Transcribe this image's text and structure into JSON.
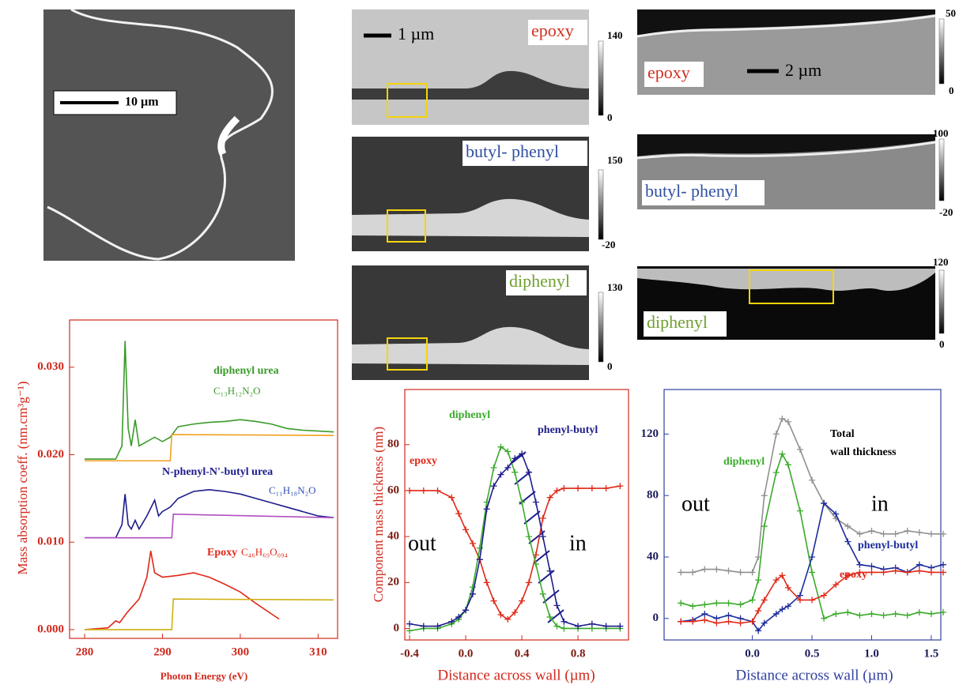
{
  "images": [
    {
      "scale_bar": "10 µm"
    },
    {
      "label": "epoxy",
      "scale_bar": "1 µm",
      "colorbar": [
        140,
        0
      ]
    },
    {
      "label": "butyl- phenyl",
      "colorbar": [
        150,
        -20
      ]
    },
    {
      "label": "diphenyl",
      "colorbar": [
        130,
        0
      ]
    },
    {
      "label": "epoxy",
      "scale_bar": "2 µm",
      "colorbar": [
        50,
        0
      ]
    },
    {
      "label": "butyl- phenyl",
      "colorbar": [
        100,
        -20
      ]
    },
    {
      "label": "diphenyl",
      "colorbar": [
        120,
        0
      ]
    }
  ],
  "chart_data": [
    {
      "type": "line",
      "x_label": "Photon Energy (eV)",
      "y_label": "Mass absorption coeff. (nm.cm³g⁻¹)",
      "axis_color": "#d0281c",
      "xlim": [
        278.07,
        312.5
      ],
      "ylim": [
        -0.001,
        0.0354
      ],
      "xticks": [
        280,
        290,
        300,
        310
      ],
      "yticks": [
        {
          "value": 0,
          "label": "0.000"
        },
        {
          "value": 0.01,
          "label": "0.010"
        },
        {
          "value": 0.02,
          "label": "0.020"
        },
        {
          "value": 0.03,
          "label": "0.030"
        }
      ],
      "series": [
        {
          "name": "diphenyl urea",
          "color": "#3a9a2a",
          "x": [
            280,
            284,
            284.8,
            285.2,
            285.6,
            286,
            286.5,
            287,
            288,
            289,
            290,
            291,
            292,
            294,
            296,
            298,
            300,
            302,
            304,
            306,
            308,
            310,
            312
          ],
          "values": [
            0.0195,
            0.0195,
            0.021,
            0.033,
            0.023,
            0.021,
            0.024,
            0.021,
            0.0215,
            0.022,
            0.0215,
            0.022,
            0.0232,
            0.0235,
            0.0237,
            0.0238,
            0.024,
            0.0238,
            0.0235,
            0.023,
            0.0228,
            0.0227,
            0.0226
          ]
        },
        {
          "color": "#f0a020",
          "x": [
            280,
            291,
            291.2,
            312
          ],
          "values": [
            0.0193,
            0.0193,
            0.0223,
            0.0222
          ]
        },
        {
          "name": "N-phenyl-N'-butyl urea",
          "color": "#1c1c8c",
          "x": [
            280,
            284,
            284.8,
            285.2,
            285.6,
            286,
            286.5,
            287,
            288,
            289,
            289.5,
            290,
            291,
            292,
            294,
            296,
            298,
            300,
            302,
            304,
            306,
            308,
            310,
            312
          ],
          "values": [
            0.0105,
            0.0105,
            0.012,
            0.0155,
            0.012,
            0.0115,
            0.0125,
            0.0115,
            0.013,
            0.0148,
            0.013,
            0.0135,
            0.014,
            0.015,
            0.0158,
            0.016,
            0.0158,
            0.0155,
            0.015,
            0.0145,
            0.014,
            0.0135,
            0.013,
            0.0128
          ]
        },
        {
          "color": "#b050c0",
          "x": [
            280,
            291.2,
            291.4,
            312
          ],
          "values": [
            0.0105,
            0.0105,
            0.0132,
            0.0128
          ]
        },
        {
          "name": "Epoxy",
          "color": "#e02818",
          "x": [
            280,
            283,
            284,
            284.5,
            285.5,
            287,
            288,
            288.5,
            289,
            290,
            292,
            294,
            296,
            298,
            300,
            302,
            304,
            305
          ],
          "values": [
            0,
            0.0002,
            0.001,
            0.0008,
            0.002,
            0.0035,
            0.006,
            0.009,
            0.0065,
            0.006,
            0.0062,
            0.0065,
            0.006,
            0.0052,
            0.0043,
            0.003,
            0.0018,
            0.0012
          ]
        },
        {
          "color": "#d0b010",
          "x": [
            280,
            291.2,
            291.4,
            312
          ],
          "values": [
            0,
            0,
            0.0035,
            0.0034
          ]
        }
      ],
      "annotations": [
        {
          "text": "C₁₃H₁₂N₂O",
          "color": "#3a9a2a"
        },
        {
          "text": "C₁₁H₁₈N₂O",
          "color": "#3050b0"
        },
        {
          "text": "C₄₆H₆₉O₀₉₄",
          "color": "#e02818"
        }
      ]
    },
    {
      "type": "line",
      "x_label": "Distance across wall (µm)",
      "y_label": "Component mass thickness (nm)",
      "axis_color": "#d0281c",
      "markers": true,
      "xlim": [
        -0.434,
        1.16
      ],
      "ylim": [
        -5,
        104
      ],
      "xticks": [
        -0.4,
        {
          "value": 0,
          "label": "0.0"
        },
        0.4,
        0.8
      ],
      "yticks": [
        0,
        20,
        40,
        60,
        80
      ],
      "series": [
        {
          "name": "epoxy",
          "color": "#e02818",
          "x": [
            -0.4,
            -0.3,
            -0.2,
            -0.1,
            -0.05,
            0,
            0.05,
            0.1,
            0.15,
            0.2,
            0.25,
            0.3,
            0.35,
            0.4,
            0.45,
            0.5,
            0.55,
            0.6,
            0.65,
            0.7,
            0.8,
            0.9,
            1.0,
            1.1
          ],
          "values": [
            60,
            60,
            60,
            57,
            50,
            43,
            37,
            30,
            20,
            12,
            6,
            4,
            7,
            12,
            20,
            32,
            48,
            57,
            60,
            61,
            61,
            61,
            61,
            62
          ]
        },
        {
          "name": "diphenyl",
          "color": "#3aaa2a",
          "x": [
            -0.4,
            -0.3,
            -0.2,
            -0.1,
            -0.05,
            0,
            0.05,
            0.1,
            0.15,
            0.2,
            0.25,
            0.3,
            0.35,
            0.4,
            0.45,
            0.5,
            0.55,
            0.6,
            0.65,
            0.7,
            0.8,
            0.9,
            1.0,
            1.1
          ],
          "values": [
            -1,
            0,
            0,
            2,
            4,
            8,
            18,
            35,
            55,
            70,
            79,
            77,
            68,
            55,
            40,
            28,
            15,
            5,
            1,
            0,
            0,
            0,
            0,
            0
          ]
        },
        {
          "name": "phenyl-butyl",
          "color": "#1c1c8c",
          "x": [
            -0.4,
            -0.3,
            -0.2,
            -0.1,
            -0.05,
            0,
            0.05,
            0.1,
            0.15,
            0.2,
            0.25,
            0.3,
            0.35,
            0.4,
            0.45,
            0.5,
            0.55,
            0.6,
            0.65,
            0.7,
            0.8,
            0.9,
            1.0,
            1.1
          ],
          "values": [
            2,
            1,
            1,
            3,
            5,
            8,
            15,
            30,
            52,
            62,
            67,
            70,
            74,
            76,
            68,
            55,
            40,
            25,
            10,
            3,
            1,
            2,
            1,
            1
          ]
        }
      ],
      "annotations": [
        {
          "text": "out",
          "color": "#000000"
        },
        {
          "text": "in",
          "color": "#000000"
        }
      ]
    },
    {
      "type": "line",
      "x_label": "Distance across wall (µm)",
      "axis_color": "#3040a0",
      "markers": true,
      "xlim": [
        -0.74,
        1.58
      ],
      "ylim": [
        -14,
        149
      ],
      "xticks": [
        {
          "value": 0,
          "label": "0.0"
        },
        0.5,
        {
          "value": 1,
          "label": "1.0"
        },
        1.5
      ],
      "yticks": [
        0,
        40,
        80,
        120
      ],
      "series": [
        {
          "color": "#909090",
          "x": [
            -0.6,
            -0.5,
            -0.4,
            -0.3,
            -0.2,
            -0.1,
            0,
            0.05,
            0.1,
            0.2,
            0.25,
            0.3,
            0.4,
            0.5,
            0.6,
            0.7,
            0.8,
            0.9,
            1.0,
            1.1,
            1.2,
            1.3,
            1.4,
            1.5,
            1.6
          ],
          "values": [
            30,
            30,
            32,
            32,
            31,
            30,
            30,
            40,
            80,
            120,
            130,
            128,
            110,
            90,
            75,
            65,
            60,
            55,
            57,
            55,
            55,
            57,
            56,
            55,
            55
          ]
        },
        {
          "name": "diphenyl",
          "color": "#3aaa2a",
          "x": [
            -0.6,
            -0.5,
            -0.4,
            -0.3,
            -0.2,
            -0.1,
            0,
            0.05,
            0.1,
            0.2,
            0.25,
            0.3,
            0.4,
            0.5,
            0.6,
            0.7,
            0.8,
            0.9,
            1.0,
            1.1,
            1.2,
            1.3,
            1.4,
            1.5,
            1.6
          ],
          "values": [
            10,
            8,
            9,
            10,
            10,
            9,
            12,
            25,
            60,
            95,
            107,
            100,
            70,
            30,
            0,
            3,
            4,
            2,
            3,
            2,
            3,
            2,
            4,
            3,
            4
          ]
        },
        {
          "name": "phenyl-butyl",
          "color": "#1c2c9c",
          "x": [
            -0.6,
            -0.5,
            -0.4,
            -0.3,
            -0.2,
            -0.1,
            0,
            0.05,
            0.1,
            0.2,
            0.25,
            0.3,
            0.4,
            0.5,
            0.6,
            0.7,
            0.8,
            0.9,
            1.0,
            1.1,
            1.2,
            1.3,
            1.4,
            1.5,
            1.6
          ],
          "values": [
            -2,
            -1,
            3,
            0,
            2,
            0,
            -2,
            -8,
            -3,
            3,
            6,
            8,
            15,
            40,
            75,
            68,
            50,
            35,
            34,
            32,
            33,
            30,
            35,
            33,
            35
          ]
        },
        {
          "name": "epoxy",
          "color": "#e02818",
          "x": [
            -0.6,
            -0.5,
            -0.4,
            -0.3,
            -0.2,
            -0.1,
            0,
            0.05,
            0.1,
            0.2,
            0.25,
            0.3,
            0.4,
            0.5,
            0.6,
            0.7,
            0.8,
            0.9,
            1.0,
            1.1,
            1.2,
            1.3,
            1.4,
            1.5,
            1.6
          ],
          "values": [
            -2,
            -2,
            -1,
            -3,
            -2,
            -3,
            -2,
            5,
            12,
            25,
            28,
            20,
            12,
            12,
            15,
            22,
            28,
            30,
            30,
            30,
            31,
            30,
            31,
            30,
            30
          ]
        }
      ],
      "annotations": [
        {
          "text": "Total",
          "color": "#000000"
        },
        {
          "text": "wall thickness",
          "color": "#000000"
        },
        {
          "text": "out",
          "color": "#000000"
        },
        {
          "text": "in",
          "color": "#000000"
        }
      ]
    }
  ]
}
